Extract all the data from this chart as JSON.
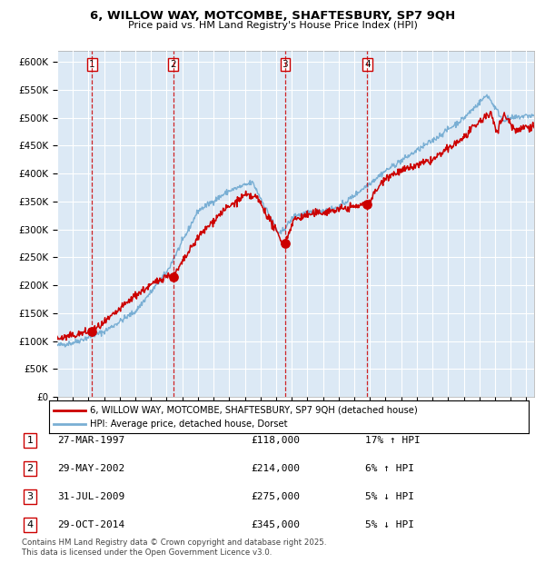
{
  "title": "6, WILLOW WAY, MOTCOMBE, SHAFTESBURY, SP7 9QH",
  "subtitle": "Price paid vs. HM Land Registry's House Price Index (HPI)",
  "legend_label_red": "6, WILLOW WAY, MOTCOMBE, SHAFTESBURY, SP7 9QH (detached house)",
  "legend_label_blue": "HPI: Average price, detached house, Dorset",
  "footer": "Contains HM Land Registry data © Crown copyright and database right 2025.\nThis data is licensed under the Open Government Licence v3.0.",
  "transactions": [
    {
      "num": 1,
      "date": "27-MAR-1997",
      "price": 118000,
      "hpi_diff": "17% ↑ HPI",
      "date_x": 1997.23
    },
    {
      "num": 2,
      "date": "29-MAY-2002",
      "price": 214000,
      "hpi_diff": "6% ↑ HPI",
      "date_x": 2002.41
    },
    {
      "num": 3,
      "date": "31-JUL-2009",
      "price": 275000,
      "hpi_diff": "5% ↓ HPI",
      "date_x": 2009.58
    },
    {
      "num": 4,
      "date": "29-OCT-2014",
      "price": 345000,
      "hpi_diff": "5% ↓ HPI",
      "date_x": 2014.83
    }
  ],
  "vline_x": [
    1997.23,
    2002.41,
    2009.58,
    2014.83
  ],
  "ylim": [
    0,
    620000
  ],
  "ytick_vals": [
    0,
    50000,
    100000,
    150000,
    200000,
    250000,
    300000,
    350000,
    400000,
    450000,
    500000,
    550000,
    600000
  ],
  "xlim": [
    1995.0,
    2025.5
  ],
  "xtick_vals": [
    1995,
    1996,
    1997,
    1998,
    1999,
    2000,
    2001,
    2002,
    2003,
    2004,
    2005,
    2006,
    2007,
    2008,
    2009,
    2010,
    2011,
    2012,
    2013,
    2014,
    2015,
    2016,
    2017,
    2018,
    2019,
    2020,
    2021,
    2022,
    2023,
    2024,
    2025
  ],
  "background_color": "#ffffff",
  "plot_bg_color": "#dce9f5",
  "grid_color": "#ffffff",
  "red_color": "#cc0000",
  "blue_color": "#7aafd4",
  "vline_color": "#cc0000",
  "label_box_edge": "#cc0000"
}
